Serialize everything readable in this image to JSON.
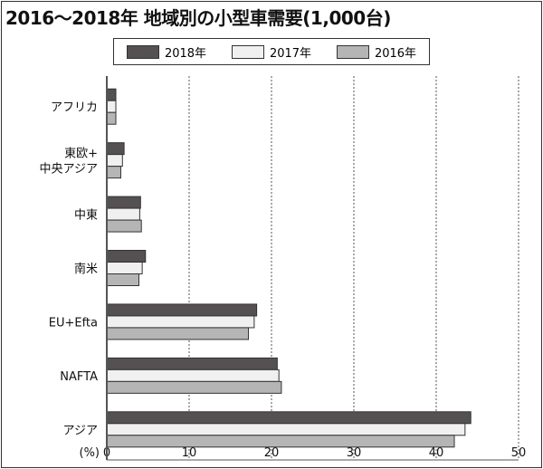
{
  "chart_data": {
    "type": "bar",
    "orientation": "horizontal",
    "title": "2016〜2018年  地域別の小型車需要(1,000台)",
    "xlabel": "(%)",
    "xlim": [
      0,
      50
    ],
    "xticks": [
      0,
      10,
      20,
      30,
      40,
      50
    ],
    "grid": "vertical dotted",
    "legend_position": "top",
    "categories": [
      [
        "アフリカ"
      ],
      [
        "東欧+",
        "中央アジア"
      ],
      [
        "中東"
      ],
      [
        "南米"
      ],
      [
        "EU+Efta"
      ],
      [
        "NAFTA"
      ],
      [
        "アジア"
      ]
    ],
    "series": [
      {
        "name": "2018年",
        "color": "#555153",
        "values": [
          1.1,
          2.1,
          4.1,
          4.7,
          18.2,
          20.7,
          44.2
        ]
      },
      {
        "name": "2017年",
        "color": "#f0f0f0",
        "values": [
          1.1,
          1.9,
          4.0,
          4.3,
          17.9,
          20.9,
          43.5
        ]
      },
      {
        "name": "2016年",
        "color": "#b5b5b5",
        "values": [
          1.1,
          1.7,
          4.2,
          3.9,
          17.2,
          21.2,
          42.2
        ]
      }
    ]
  }
}
